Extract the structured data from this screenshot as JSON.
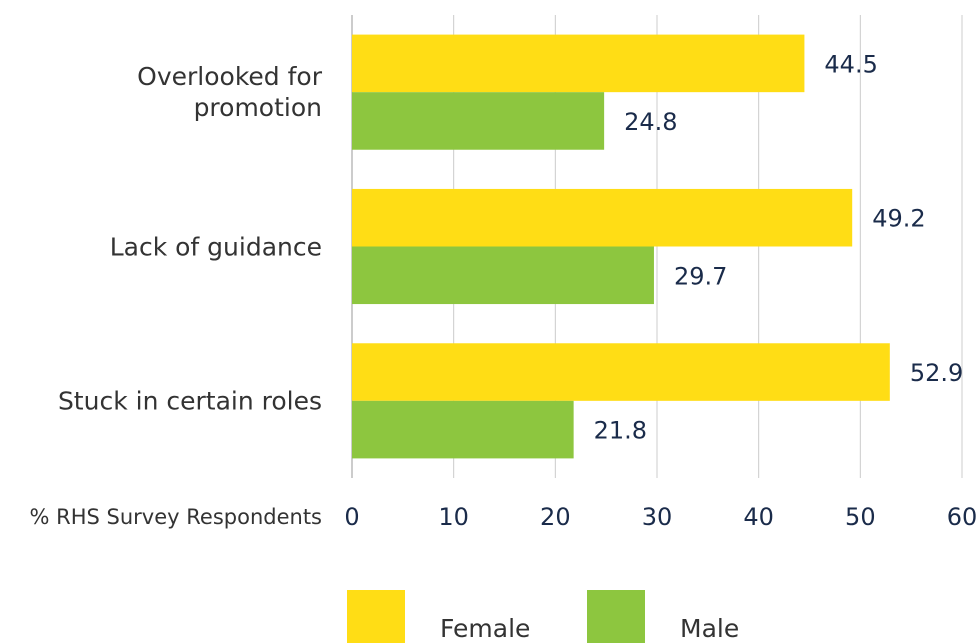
{
  "chart_data": {
    "type": "bar",
    "orientation": "horizontal",
    "categories": [
      "Overlooked for promotion",
      "Lack of guidance",
      "Stuck in certain roles"
    ],
    "series": [
      {
        "name": "Female",
        "color": "#FFDD15",
        "values": [
          44.5,
          49.2,
          52.9
        ]
      },
      {
        "name": "Male",
        "color": "#8DC63F",
        "values": [
          24.8,
          29.7,
          21.8
        ]
      }
    ],
    "xlabel": "% RHS Survey Respondents",
    "xlim": [
      0,
      60
    ],
    "xticks": [
      0,
      10,
      20,
      30,
      40,
      50,
      60
    ],
    "grid": true,
    "legend": "bottom"
  }
}
